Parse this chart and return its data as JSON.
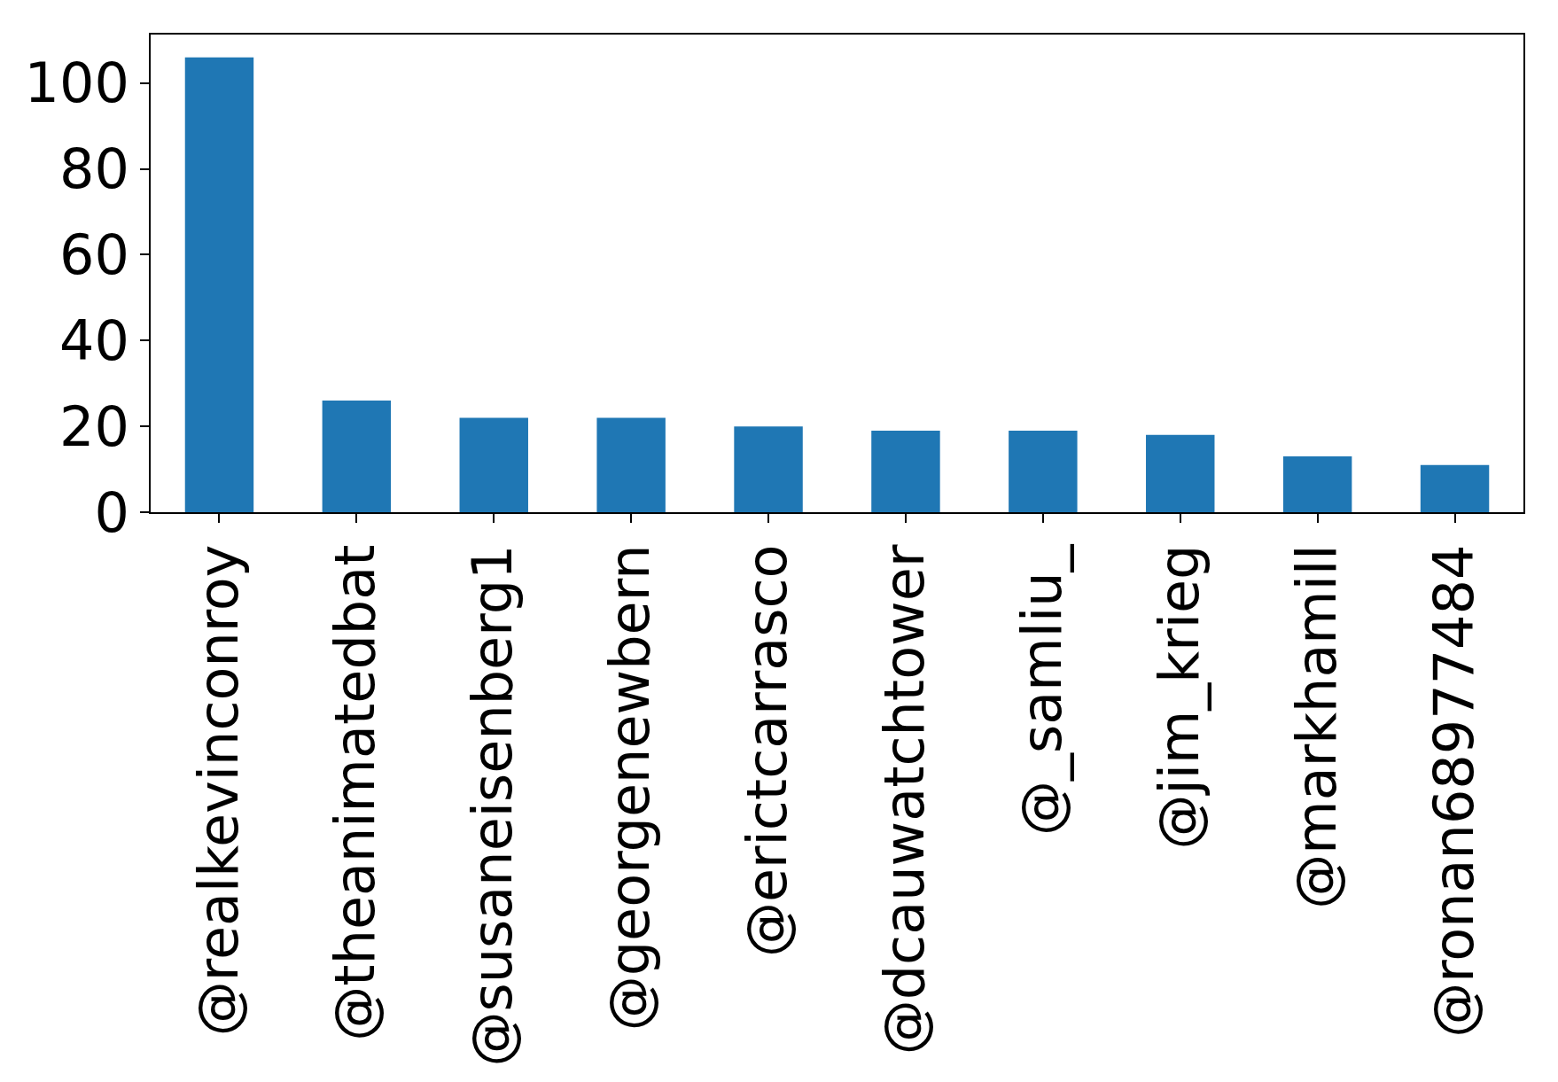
{
  "chart_data": {
    "type": "bar",
    "categories": [
      "@realkevinconroy",
      "@theanimatedbat",
      "@susaneisenberg1",
      "@georgenewbern",
      "@erictcarrasco",
      "@dcauwatchtower",
      "@_samliu_",
      "@jim_krieg",
      "@markhamill",
      "@ronan68977484"
    ],
    "values": [
      106,
      26,
      22,
      22,
      20,
      19,
      19,
      18,
      13,
      11
    ],
    "color": "#1f77b4",
    "ylim": [
      0,
      111.3
    ],
    "yticks": [
      0,
      20,
      40,
      60,
      80,
      100
    ]
  }
}
